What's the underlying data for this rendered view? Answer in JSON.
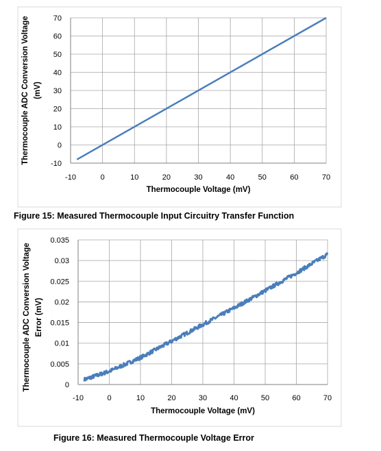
{
  "captions": {
    "figure15": "Figure 15:  Measured Thermocouple Input Circuitry Transfer Function",
    "figure16": "Figure 16:  Measured Thermocouple Voltage Error"
  },
  "colors": {
    "series": "#4a7ebb",
    "grid": "#a6a6a6",
    "axis": "#7f7f7f"
  },
  "chart_data": [
    {
      "type": "line",
      "title": "",
      "xlabel": "Thermocouple Voltage (mV)",
      "ylabel_lines": [
        "Thermocouple ADC Conversion Voltage",
        "(mV)"
      ],
      "xlim": [
        -10,
        70
      ],
      "ylim": [
        -10,
        70
      ],
      "xticks": [
        -10,
        0,
        10,
        20,
        30,
        40,
        50,
        60,
        70
      ],
      "yticks": [
        -10,
        0,
        10,
        20,
        30,
        40,
        50,
        60,
        70
      ],
      "grid": true,
      "legend": "none",
      "series": [
        {
          "x": [
            -8,
            70
          ],
          "y": [
            -8,
            70
          ]
        }
      ]
    },
    {
      "type": "line",
      "title": "",
      "xlabel": "Thermocouple Voltage (mV)",
      "ylabel_lines": [
        "Thermocouple ADC Conversion Voltage",
        "Error (mV)"
      ],
      "xlim": [
        -10,
        70
      ],
      "ylim": [
        0,
        0.035
      ],
      "xticks": [
        -10,
        0,
        10,
        20,
        30,
        40,
        50,
        60,
        70
      ],
      "yticks": [
        0,
        0.005,
        0.01,
        0.015,
        0.02,
        0.025,
        0.03,
        0.035
      ],
      "ytick_labels": [
        "0",
        "0.005",
        "0.01",
        "0.015",
        "0.02",
        "0.025",
        "0.03",
        "0.035"
      ],
      "grid": true,
      "legend": "none",
      "series": [
        {
          "x": [
            -8,
            0,
            10,
            20,
            30,
            40,
            50,
            60,
            70
          ],
          "y": [
            0.0012,
            0.0032,
            0.0065,
            0.0105,
            0.0145,
            0.0185,
            0.0227,
            0.027,
            0.0315
          ]
        }
      ]
    }
  ]
}
